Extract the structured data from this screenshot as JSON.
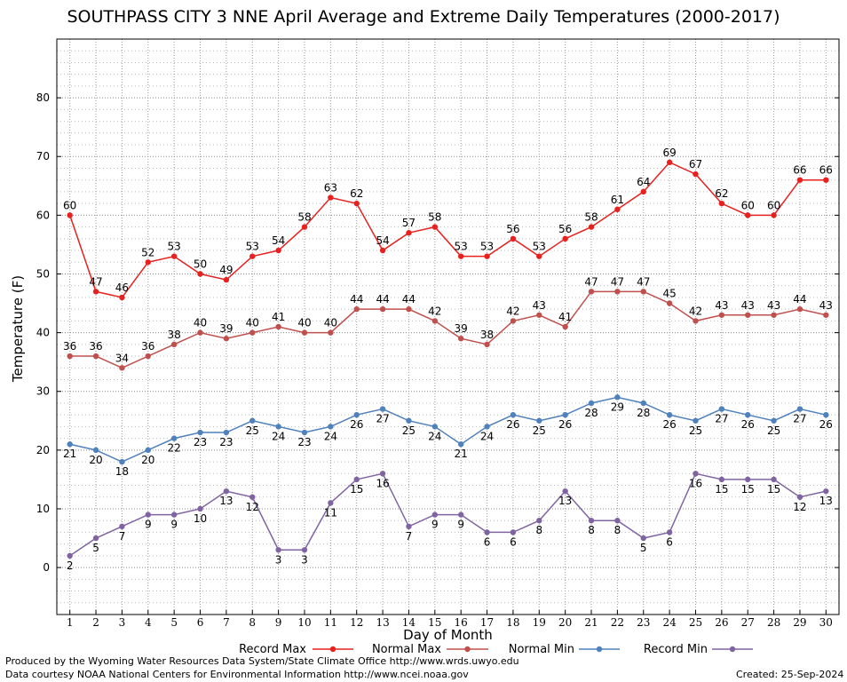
{
  "chart_data": {
    "type": "line",
    "title": "SOUTHPASS CITY 3 NNE April Average and Extreme Daily Temperatures (2000-2017)",
    "xlabel": "Day of Month",
    "ylabel": "Temperature (F)",
    "xlim": [
      0.5,
      30.5
    ],
    "ylim": [
      -8,
      90
    ],
    "yticks": [
      0,
      10,
      20,
      30,
      40,
      50,
      60,
      70,
      80
    ],
    "x": [
      1,
      2,
      3,
      4,
      5,
      6,
      7,
      8,
      9,
      10,
      11,
      12,
      13,
      14,
      15,
      16,
      17,
      18,
      19,
      20,
      21,
      22,
      23,
      24,
      25,
      26,
      27,
      28,
      29,
      30
    ],
    "grid": true,
    "legend_placement": "bottom",
    "series": [
      {
        "name": "Record Max",
        "color": "#e8211f",
        "label_position": "above",
        "values": [
          60,
          47,
          46,
          52,
          53,
          50,
          49,
          53,
          54,
          58,
          63,
          62,
          54,
          57,
          58,
          53,
          53,
          56,
          53,
          56,
          58,
          61,
          64,
          69,
          67,
          62,
          60,
          60,
          66,
          66
        ]
      },
      {
        "name": "Normal Max",
        "color": "#c0504d",
        "label_position": "above",
        "values": [
          36,
          36,
          34,
          36,
          38,
          40,
          39,
          40,
          41,
          40,
          40,
          44,
          44,
          44,
          42,
          39,
          38,
          42,
          43,
          41,
          47,
          47,
          47,
          45,
          42,
          43,
          43,
          43,
          44,
          43
        ]
      },
      {
        "name": "Normal Min",
        "color": "#4f81bd",
        "label_position": "below",
        "values": [
          21,
          20,
          18,
          20,
          22,
          23,
          23,
          25,
          24,
          23,
          24,
          26,
          27,
          25,
          24,
          21,
          24,
          26,
          25,
          26,
          28,
          29,
          28,
          26,
          25,
          27,
          26,
          25,
          27,
          26
        ]
      },
      {
        "name": "Record Min",
        "color": "#8064a2",
        "label_position": "below",
        "values": [
          2,
          5,
          7,
          9,
          9,
          10,
          13,
          12,
          3,
          3,
          11,
          15,
          16,
          7,
          9,
          9,
          6,
          6,
          8,
          13,
          8,
          8,
          5,
          6,
          16,
          15,
          15,
          15,
          12,
          13
        ]
      }
    ]
  },
  "footer": {
    "produced_by": "Produced by the Wyoming Water Resources Data System/State Climate Office http://www.wrds.uwyo.edu",
    "courtesy": "Data courtesy NOAA National Centers for Environmental Information http://www.ncei.noaa.gov",
    "created": "Created:  25-Sep-2024"
  }
}
